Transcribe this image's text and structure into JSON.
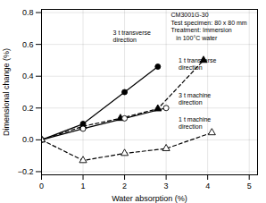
{
  "chart_data": {
    "type": "line",
    "title": "CM3001G-30\nTest specimen: 80 x 80 mm\nTreatment: Immersion\n   in 100°C water",
    "xlabel": "Water absorption (%)",
    "ylabel": "Dimensional change (%)",
    "xlim": [
      0,
      5.2
    ],
    "ylim": [
      -0.22,
      0.82
    ],
    "xticks": [
      0,
      1,
      2,
      3,
      4,
      5
    ],
    "yticks": [
      {
        "value": -0.2,
        "label": "−0.2"
      },
      {
        "value": 0.0,
        "label": "0.0"
      },
      0.2,
      0.4,
      0.6,
      0.8
    ],
    "grid": true,
    "series": [
      {
        "x": [
          0,
          1.0,
          2.0,
          2.8
        ],
        "values": [
          0.0,
          0.1,
          0.3,
          0.46
        ],
        "color": "black",
        "marker": "circle",
        "line_style": "solid"
      },
      {
        "x": [
          0,
          1.0,
          1.9,
          2.8,
          3.9
        ],
        "values": [
          0.0,
          0.085,
          0.135,
          0.195,
          0.5
        ],
        "color": "black",
        "marker": "triangle",
        "line_style": "dashed"
      },
      {
        "x": [
          0,
          1.0,
          2.0,
          3.0
        ],
        "values": [
          0.0,
          0.07,
          0.135,
          0.2
        ],
        "color": "black",
        "marker": "circle-open",
        "line_style": "solid"
      },
      {
        "x": [
          0,
          1.0,
          2.0,
          3.0,
          4.1
        ],
        "values": [
          0.0,
          -0.13,
          -0.085,
          -0.055,
          0.045
        ],
        "color": "black",
        "marker": "triangle-open",
        "line_style": "dashed"
      }
    ],
    "annotations": [
      {
        "text": "3 t transverse\ndirection",
        "x": 1.72,
        "y": 0.615
      },
      {
        "text": "1 t transverse\ndirection",
        "x": 3.3,
        "y": 0.44
      },
      {
        "text": "3 t machine\ndirection",
        "x": 3.3,
        "y": 0.22
      },
      {
        "text": "1 t machine\ndirection",
        "x": 3.3,
        "y": 0.07
      }
    ]
  }
}
